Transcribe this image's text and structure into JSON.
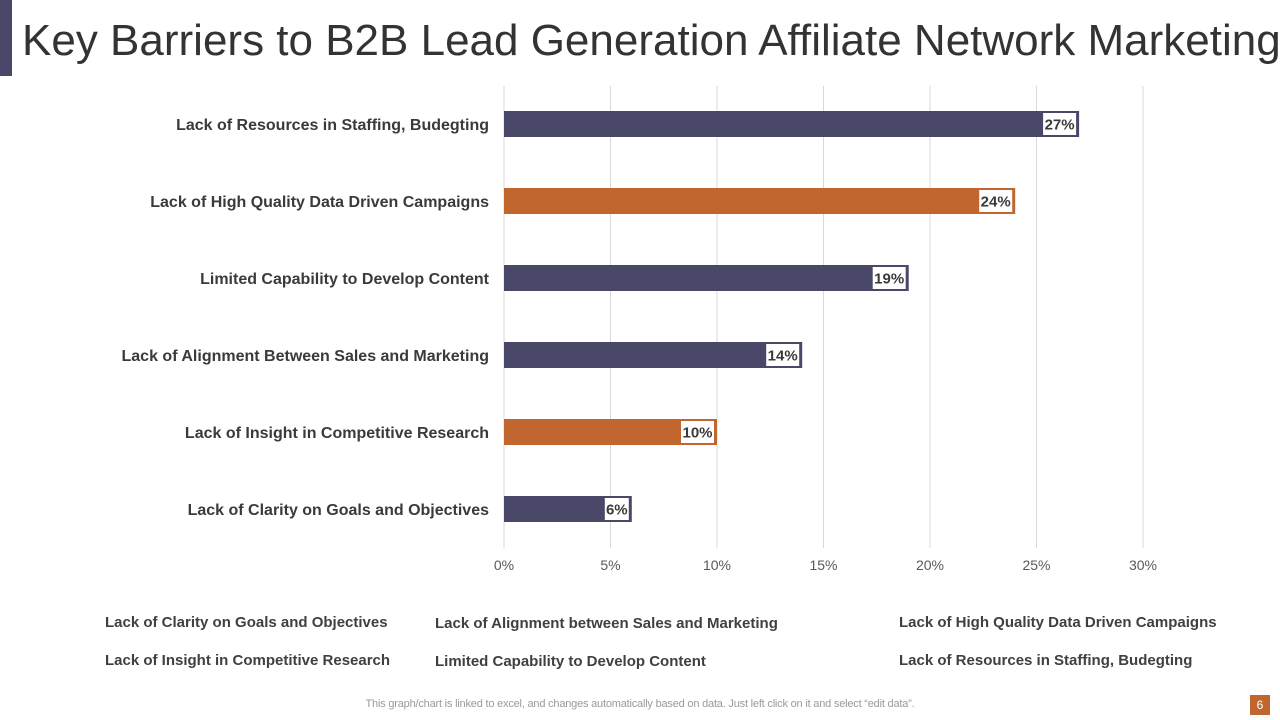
{
  "header": {
    "title": "Key Barriers to B2B Lead Generation Affiliate Network Marketing"
  },
  "colors": {
    "primary": "#4a4869",
    "accent": "#c0662e",
    "grid": "#d9d9d9"
  },
  "chart_data": {
    "type": "bar",
    "orientation": "horizontal",
    "title": "",
    "xlabel": "",
    "ylabel": "",
    "xlim": [
      0,
      30
    ],
    "grid": true,
    "ticks": [
      "0%",
      "5%",
      "10%",
      "15%",
      "20%",
      "25%",
      "30%"
    ],
    "categories": [
      "Lack of Resources in Staffing, Budegting",
      "Lack of High Quality Data Driven Campaigns",
      "Limited Capability to Develop Content",
      "Lack of Alignment Between Sales and Marketing",
      "Lack of Insight in Competitive Research",
      "Lack of Clarity on Goals and Objectives"
    ],
    "values": [
      27,
      24,
      19,
      14,
      10,
      6
    ],
    "labels": [
      "27%",
      "24%",
      "19%",
      "14%",
      "10%",
      "6%"
    ],
    "bar_colors": [
      "#4a4869",
      "#c0662e",
      "#4a4869",
      "#4a4869",
      "#c0662e",
      "#4a4869"
    ]
  },
  "notes": {
    "items": [
      "Lack of Clarity on Goals and Objectives",
      "Lack of Insight in Competitive Research",
      "Lack of Alignment between Sales and Marketing",
      "Limited Capability to Develop Content",
      "Lack of High Quality Data Driven Campaigns",
      "Lack of Resources in Staffing, Budegting"
    ]
  },
  "footer": {
    "note": "This graph/chart is linked to excel,  and changes automatically based on data. Just left click on it and select “edit data”.",
    "page_number": "6"
  }
}
